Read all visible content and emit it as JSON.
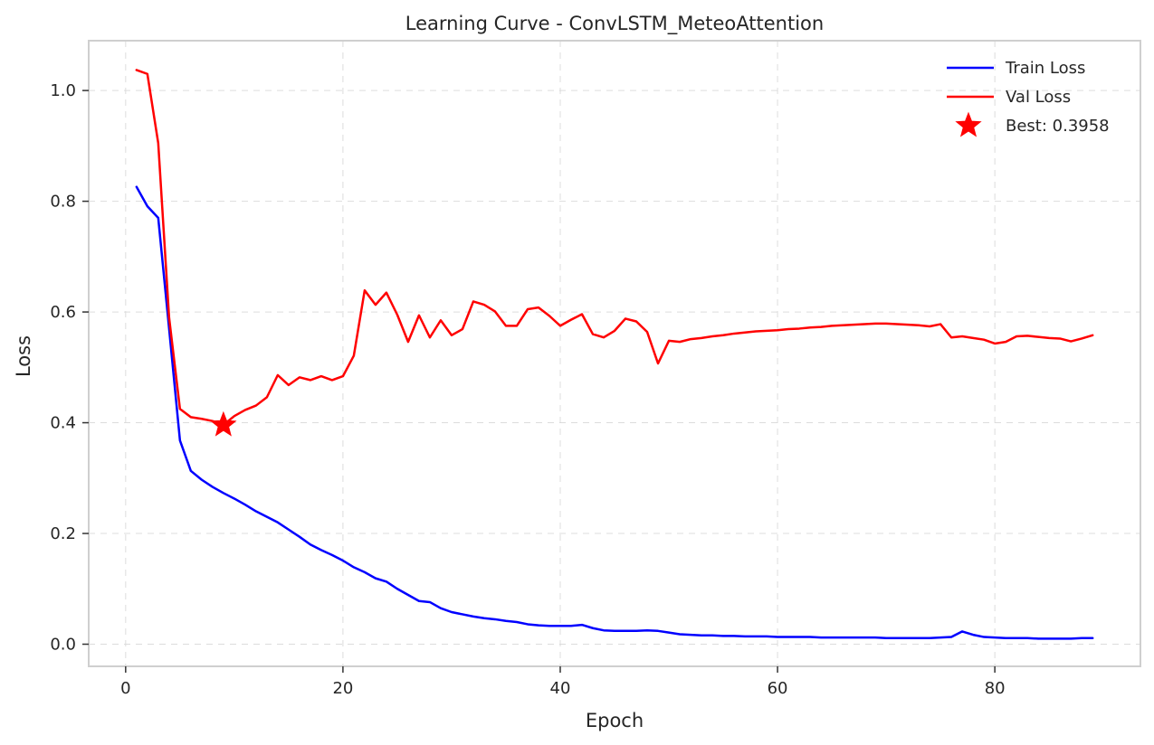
{
  "chart_data": {
    "type": "line",
    "title": "Learning Curve - ConvLSTM_MeteoAttention",
    "xlabel": "Epoch",
    "ylabel": "Loss",
    "xlim": [
      -3.4,
      93.4
    ],
    "ylim": [
      -0.04,
      1.09
    ],
    "xticks": [
      0,
      20,
      40,
      60,
      80
    ],
    "yticks": [
      0.0,
      0.2,
      0.4,
      0.6,
      0.8,
      1.0
    ],
    "xtick_labels": [
      "0",
      "20",
      "40",
      "60",
      "80"
    ],
    "ytick_labels": [
      "0.0",
      "0.2",
      "0.4",
      "0.6",
      "0.8",
      "1.0"
    ],
    "grid": true,
    "legend_position": "top-right",
    "x": [
      1,
      2,
      3,
      4,
      5,
      6,
      7,
      8,
      9,
      10,
      11,
      12,
      13,
      14,
      15,
      16,
      17,
      18,
      19,
      20,
      21,
      22,
      23,
      24,
      25,
      26,
      27,
      28,
      29,
      30,
      31,
      32,
      33,
      34,
      35,
      36,
      37,
      38,
      39,
      40,
      41,
      42,
      43,
      44,
      45,
      46,
      47,
      48,
      49,
      50,
      51,
      52,
      53,
      54,
      55,
      56,
      57,
      58,
      59,
      60,
      61,
      62,
      63,
      64,
      65,
      66,
      67,
      68,
      69,
      70,
      71,
      72,
      73,
      74,
      75,
      76,
      77,
      78,
      79,
      80,
      81,
      82,
      83,
      84,
      85,
      86,
      87,
      88,
      89
    ],
    "series": [
      {
        "name": "Train Loss",
        "color": "#0000ff",
        "values": [
          0.826,
          0.791,
          0.77,
          0.57,
          0.368,
          0.313,
          0.297,
          0.284,
          0.273,
          0.263,
          0.252,
          0.24,
          0.23,
          0.22,
          0.207,
          0.194,
          0.18,
          0.17,
          0.161,
          0.151,
          0.139,
          0.13,
          0.119,
          0.113,
          0.1,
          0.089,
          0.078,
          0.076,
          0.065,
          0.058,
          0.054,
          0.05,
          0.047,
          0.045,
          0.042,
          0.04,
          0.036,
          0.034,
          0.033,
          0.033,
          0.033,
          0.035,
          0.029,
          0.025,
          0.024,
          0.024,
          0.024,
          0.025,
          0.024,
          0.021,
          0.018,
          0.017,
          0.016,
          0.016,
          0.015,
          0.015,
          0.014,
          0.014,
          0.014,
          0.013,
          0.013,
          0.013,
          0.013,
          0.012,
          0.012,
          0.012,
          0.012,
          0.012,
          0.012,
          0.011,
          0.011,
          0.011,
          0.011,
          0.011,
          0.012,
          0.013,
          0.023,
          0.017,
          0.013,
          0.012,
          0.011,
          0.011,
          0.011,
          0.01,
          0.01,
          0.01,
          0.01,
          0.011,
          0.011
        ]
      },
      {
        "name": "Val Loss",
        "color": "#ff0000",
        "values": [
          1.037,
          1.03,
          0.905,
          0.59,
          0.425,
          0.41,
          0.407,
          0.403,
          0.396,
          0.412,
          0.423,
          0.431,
          0.446,
          0.486,
          0.468,
          0.482,
          0.477,
          0.484,
          0.477,
          0.484,
          0.521,
          0.639,
          0.613,
          0.635,
          0.595,
          0.546,
          0.594,
          0.554,
          0.585,
          0.558,
          0.569,
          0.619,
          0.613,
          0.601,
          0.575,
          0.575,
          0.605,
          0.608,
          0.593,
          0.575,
          0.586,
          0.596,
          0.56,
          0.554,
          0.566,
          0.588,
          0.583,
          0.564,
          0.507,
          0.548,
          0.546,
          0.551,
          0.553,
          0.556,
          0.558,
          0.561,
          0.563,
          0.565,
          0.566,
          0.567,
          0.569,
          0.57,
          0.572,
          0.573,
          0.575,
          0.576,
          0.577,
          0.578,
          0.579,
          0.579,
          0.578,
          0.577,
          0.576,
          0.574,
          0.578,
          0.554,
          0.556,
          0.553,
          0.55,
          0.543,
          0.546,
          0.556,
          0.557,
          0.555,
          0.553,
          0.552,
          0.547,
          0.552,
          0.558
        ]
      }
    ],
    "best_point": {
      "label": "Best: 0.3958",
      "x": 9,
      "y": 0.3958,
      "color": "#ff0000",
      "marker": "star"
    },
    "legend": [
      {
        "label": "Train Loss",
        "color": "#0000ff",
        "marker": "line"
      },
      {
        "label": "Val Loss",
        "color": "#ff0000",
        "marker": "line"
      },
      {
        "label": "Best: 0.3958",
        "color": "#ff0000",
        "marker": "star"
      }
    ]
  }
}
